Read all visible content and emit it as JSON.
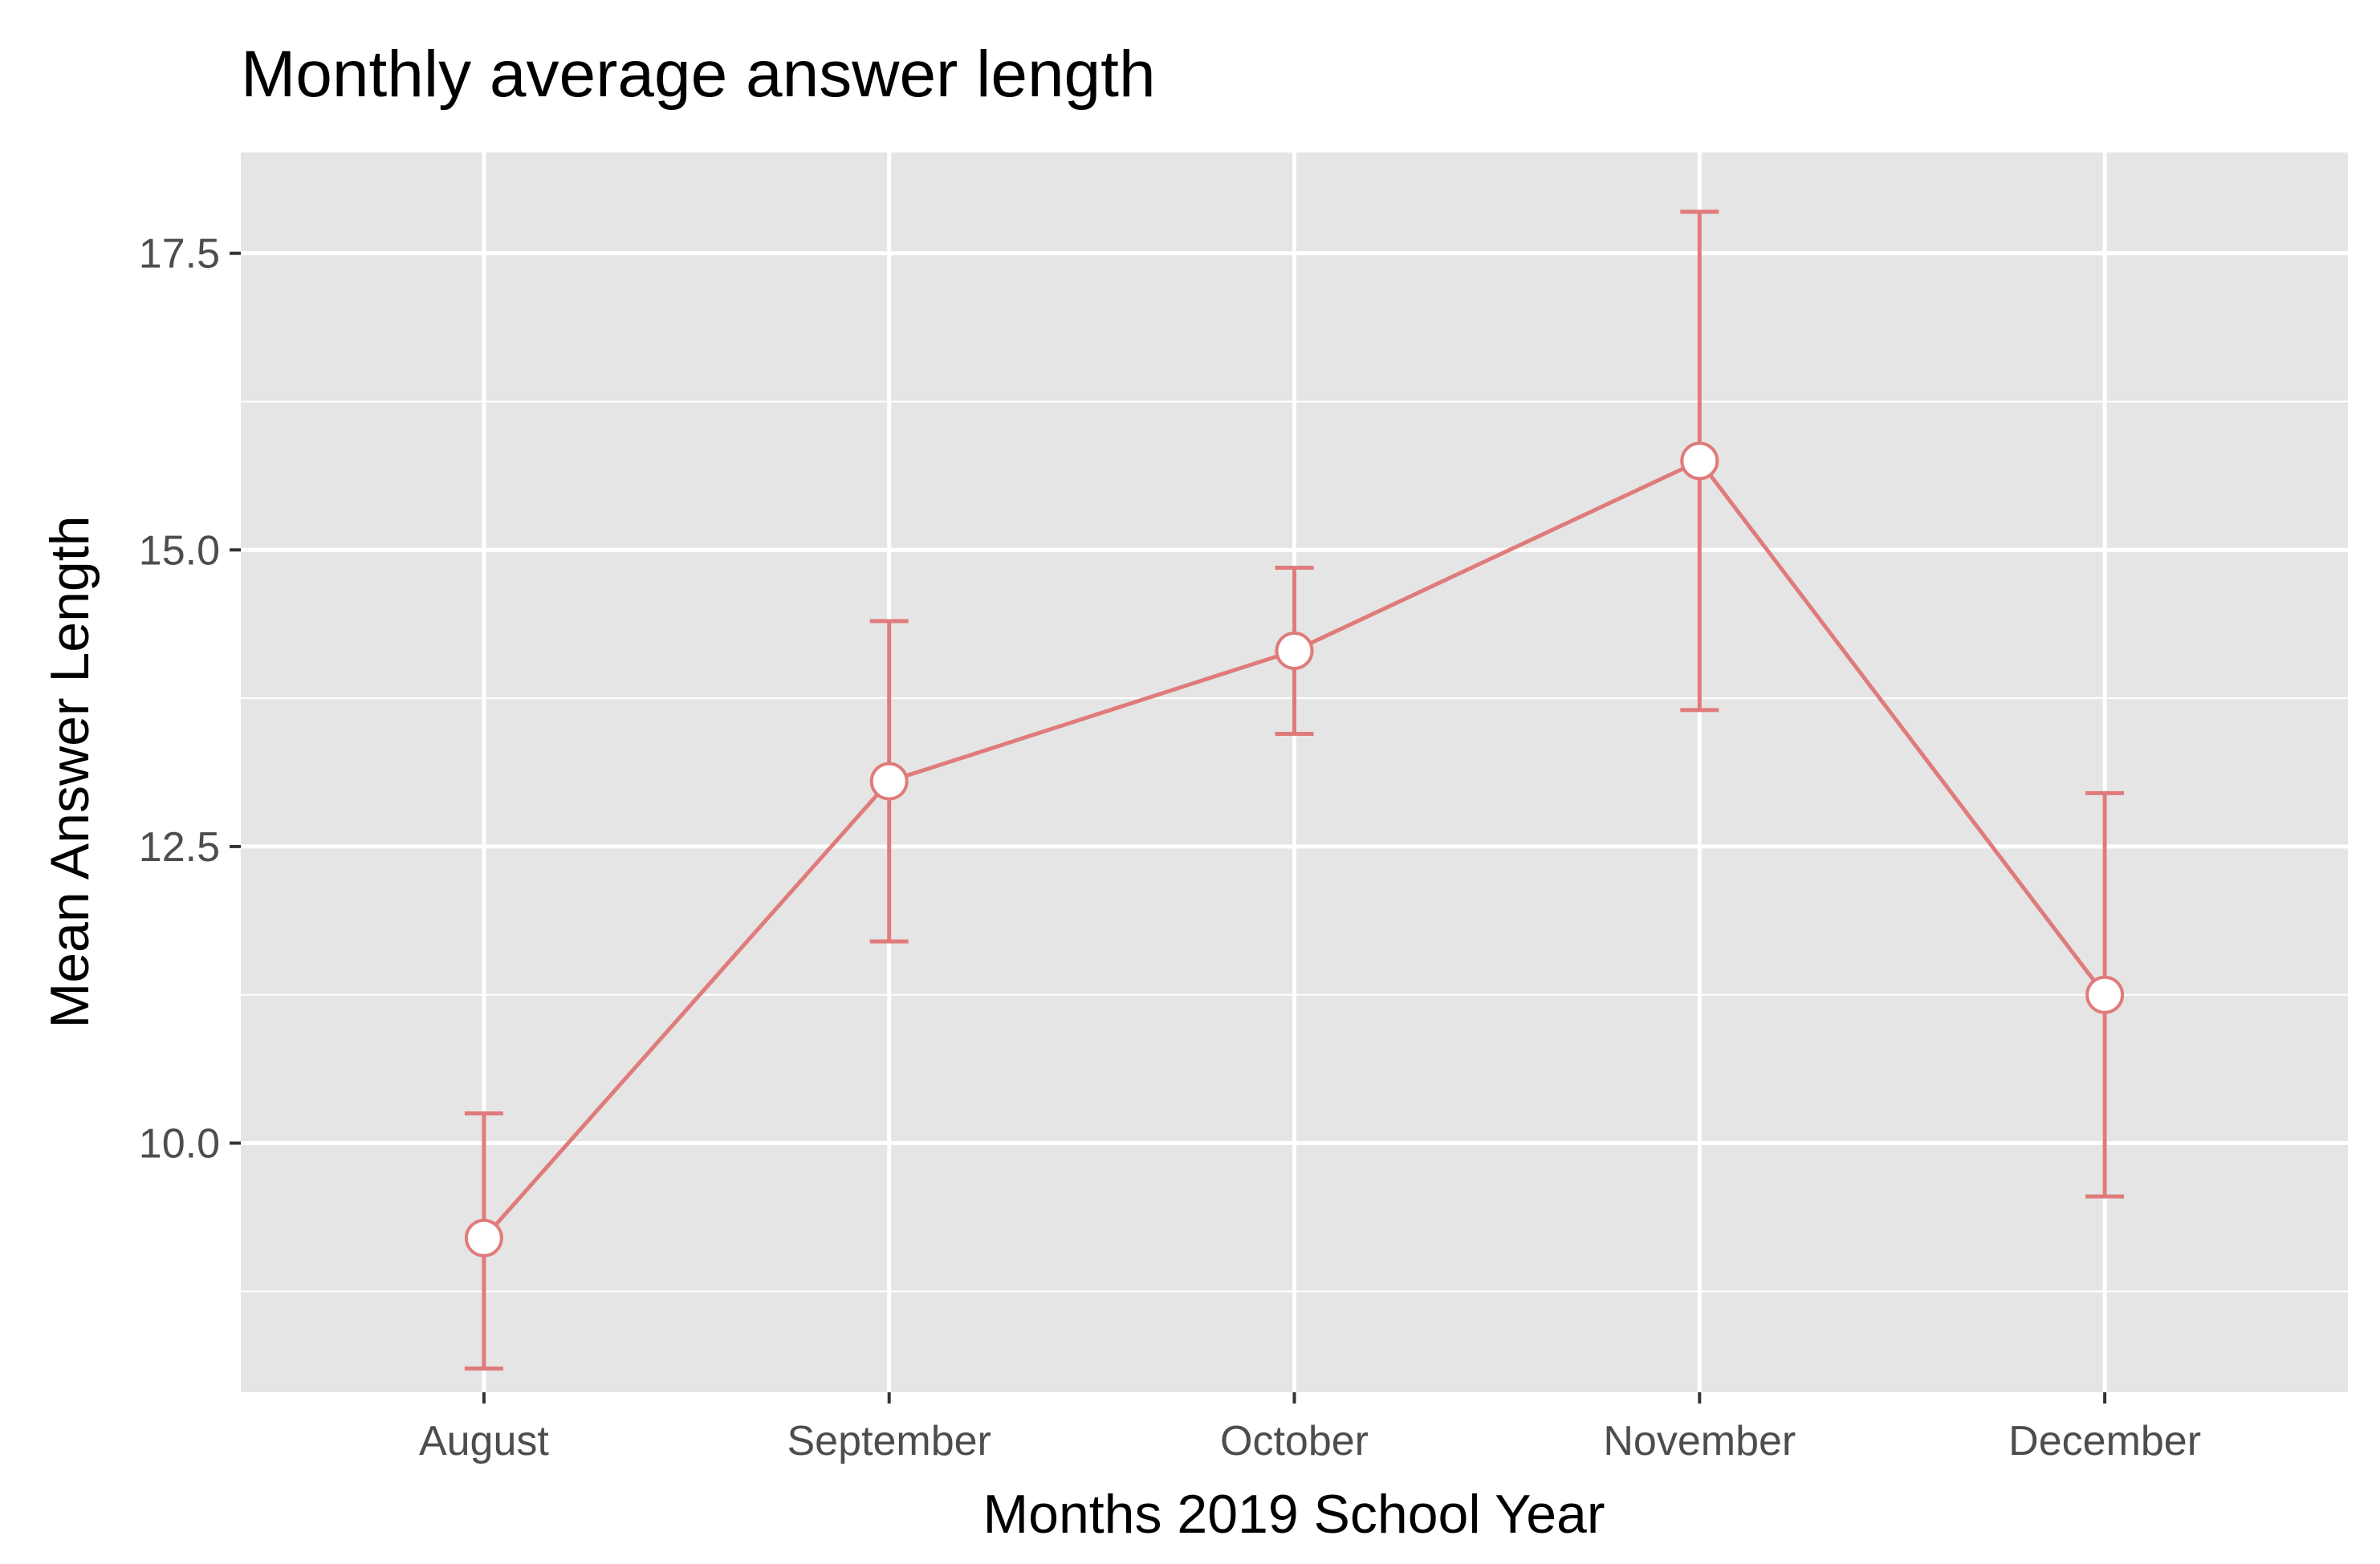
{
  "chart_data": {
    "type": "line",
    "title": "Monthly average answer length",
    "xlabel": "Months 2019 School Year",
    "ylabel": "Mean Answer Length",
    "categories": [
      "August",
      "September",
      "October",
      "November",
      "December"
    ],
    "series": [
      {
        "values": [
          9.2,
          13.05,
          14.15,
          15.75,
          11.25
        ],
        "error_low": [
          8.1,
          11.7,
          13.45,
          13.65,
          9.55
        ],
        "error_high": [
          10.25,
          14.4,
          14.85,
          17.85,
          12.95
        ]
      }
    ],
    "ylim": [
      7.9,
      18.35
    ],
    "yticks": [
      10.0,
      12.5,
      15.0,
      17.5
    ],
    "ytick_labels": [
      "10.0",
      "12.5",
      "15.0",
      "17.5"
    ],
    "grid": true,
    "legend": "none",
    "colors": {
      "series": "#e07b7b",
      "panel_background": "#e5e5e5",
      "grid": "#ffffff",
      "marker_fill": "#ffffff"
    }
  }
}
